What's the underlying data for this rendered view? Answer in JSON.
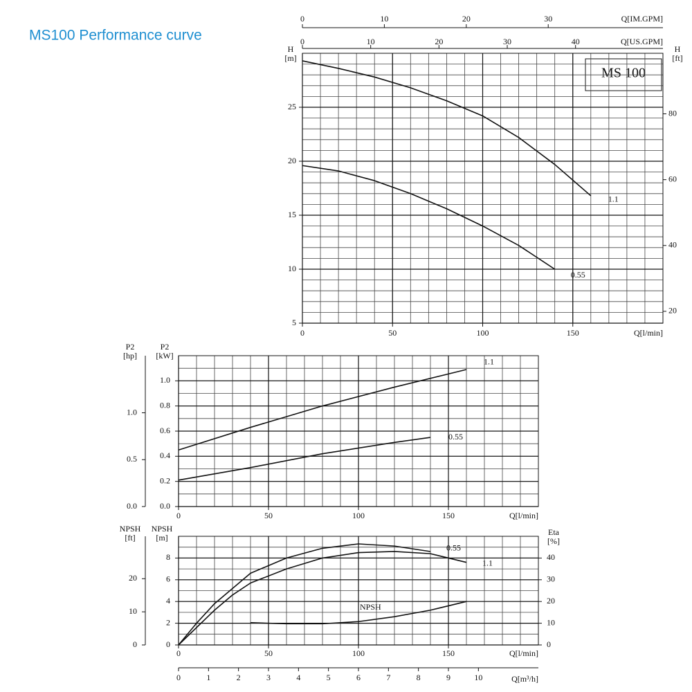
{
  "title": "MS100 Performance curve",
  "chart_data": [
    {
      "type": "line",
      "annotation": "MS 100",
      "xlabel": "Q[l/min]",
      "xlim": [
        0,
        200
      ],
      "xticks": [
        0,
        50,
        100,
        150
      ],
      "x2label": "Q[US.GPM]",
      "x2lim": [
        0,
        52.8
      ],
      "x2ticks": [
        0,
        10,
        20,
        30,
        40
      ],
      "x3label": "Q[IM.GPM]",
      "x3lim": [
        0,
        44
      ],
      "x3ticks": [
        0,
        10,
        20,
        30
      ],
      "ylabel": [
        "H",
        "[m]"
      ],
      "ylim": [
        5,
        30
      ],
      "yticks": [
        5,
        10,
        15,
        20,
        25
      ],
      "y2label": [
        "H",
        "[ft]"
      ],
      "y2lim": [
        16.4,
        98.4
      ],
      "y2ticks": [
        20,
        40,
        60,
        80
      ],
      "grid": true,
      "grid_step": [
        10,
        1
      ],
      "series": [
        {
          "name": "1.1",
          "color": "#111111",
          "x": [
            0,
            20,
            40,
            60,
            80,
            100,
            120,
            140,
            160
          ],
          "values": [
            29.3,
            28.6,
            27.8,
            26.8,
            25.6,
            24.2,
            22.2,
            19.7,
            16.8
          ]
        },
        {
          "name": "0.55",
          "color": "#111111",
          "x": [
            0,
            20,
            40,
            60,
            80,
            100,
            120,
            140
          ],
          "values": [
            19.6,
            19.1,
            18.2,
            17.0,
            15.6,
            14.0,
            12.2,
            10.0
          ]
        }
      ]
    },
    {
      "type": "line",
      "xlabel": "Q[l/min]",
      "xlim": [
        0,
        200
      ],
      "xticks": [
        0,
        50,
        100,
        150
      ],
      "ylabel": [
        "P2",
        "[kW]"
      ],
      "ylim": [
        0,
        1.2
      ],
      "yticks": [
        {
          "value": 0,
          "label": "0.0"
        },
        0.2,
        0.4,
        0.6,
        0.8,
        {
          "value": 1,
          "label": "1.0"
        }
      ],
      "y2label": [
        "P2",
        "[hp]"
      ],
      "y2lim": [
        0,
        1.609
      ],
      "y2ticks": [
        {
          "value": 0,
          "label": "0.0"
        },
        0.5,
        {
          "value": 1,
          "label": "1.0"
        }
      ],
      "grid": true,
      "grid_step": [
        10,
        0.1
      ],
      "series": [
        {
          "name": "1.1",
          "color": "#111111",
          "x": [
            0,
            40,
            80,
            120,
            160
          ],
          "values": [
            0.45,
            0.63,
            0.8,
            0.95,
            1.09
          ]
        },
        {
          "name": "0.55",
          "color": "#111111",
          "x": [
            0,
            40,
            80,
            120,
            140
          ],
          "values": [
            0.21,
            0.31,
            0.42,
            0.51,
            0.55
          ]
        }
      ]
    },
    {
      "type": "line",
      "xlabel": "Q[l/min]",
      "xlim": [
        0,
        200
      ],
      "xticks": [
        0,
        50,
        100,
        150
      ],
      "x2label": "Q[m³/h]",
      "x2lim": [
        0,
        12
      ],
      "x2ticks": [
        0,
        1,
        2,
        3,
        4,
        5,
        6,
        7,
        8,
        9,
        10
      ],
      "ylabel": [
        "NPSH",
        "[m]"
      ],
      "ylim": [
        0,
        10
      ],
      "yticks": [
        0,
        2,
        4,
        6,
        8
      ],
      "y2label": [
        "NPSH",
        "[ft]"
      ],
      "y2lim": [
        0,
        32.8
      ],
      "y2ticks": [
        0,
        10,
        20
      ],
      "y3label": [
        "Eta",
        "[%]"
      ],
      "y3lim": [
        0,
        50
      ],
      "y3ticks": [
        0,
        10,
        20,
        30,
        40
      ],
      "grid": true,
      "grid_step": [
        10,
        1
      ],
      "series": [
        {
          "name": "0.55",
          "color": "#111111",
          "axis": "y3",
          "x": [
            0,
            10,
            20,
            30,
            40,
            60,
            80,
            100,
            120,
            140
          ],
          "values": [
            0,
            10,
            19,
            26,
            33,
            40,
            44.5,
            46.5,
            45.5,
            43
          ]
        },
        {
          "name": "1.1",
          "color": "#111111",
          "axis": "y3",
          "x": [
            0,
            10,
            20,
            30,
            40,
            60,
            80,
            100,
            120,
            140,
            160
          ],
          "values": [
            0,
            8,
            16,
            23,
            28.5,
            35,
            40,
            42.5,
            43,
            42,
            38
          ]
        },
        {
          "name": "NPSH",
          "color": "#111111",
          "x": [
            40,
            60,
            80,
            100,
            120,
            140,
            160
          ],
          "values": [
            2.05,
            1.95,
            1.95,
            2.15,
            2.6,
            3.2,
            4.0
          ]
        }
      ]
    }
  ]
}
